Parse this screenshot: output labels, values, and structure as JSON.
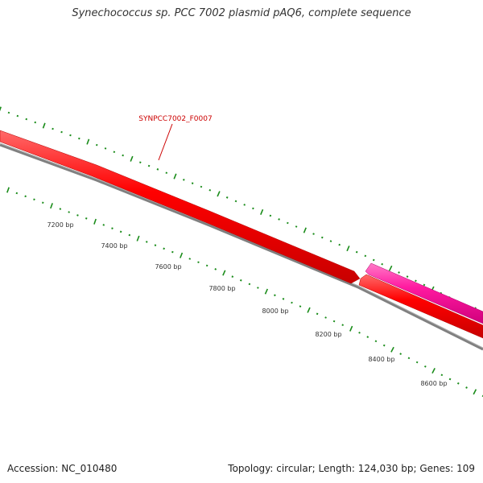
{
  "title": "Synechococcus sp. PCC 7002 plasmid pAQ6, complete sequence",
  "footer": {
    "accession": "Accession: NC_010480",
    "topology": "Topology: circular; Length: 124,030 bp; Genes: 109"
  },
  "gene_label": {
    "text": "SYNPCC7002_F0007"
  },
  "ruler_labels": [
    "7200 bp",
    "7400 bp",
    "7600 bp",
    "7800 bp",
    "8000 bp",
    "8200 bp",
    "8400 bp",
    "8600 bp"
  ],
  "colors": {
    "gene_forward": "#ff0000",
    "gene_reverse": "#ff1aa0",
    "backbone": "#808080",
    "ticks": "#1a8c1a",
    "label": "#cc0000"
  }
}
